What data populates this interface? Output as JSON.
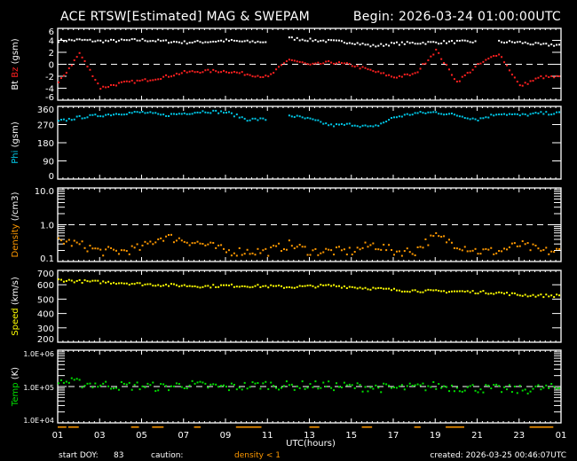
{
  "header": {
    "title": "ACE RTSW[Estimated] MAG & SWEPAM",
    "begin": "Begin: 2026-03-24 01:00:00UTC"
  },
  "footer": {
    "start_doy_label": "start DOY:",
    "start_doy": "83",
    "caution_label": "caution:",
    "caution_text": "density < 1",
    "created": "created: 2026-03-25 00:46:07UTC"
  },
  "colors": {
    "bt": "#ffffff",
    "bz": "#ff2020",
    "phi": "#00c8e8",
    "density": "#ff9900",
    "speed": "#ffff00",
    "temp": "#00e000"
  },
  "chart_data": {
    "type": "scatter",
    "xlabel": "UTC(hours)",
    "x_ticks": [
      "01",
      "03",
      "05",
      "07",
      "09",
      "11",
      "13",
      "15",
      "17",
      "19",
      "21",
      "23",
      "01"
    ],
    "x_hours": [
      0,
      1,
      2,
      3,
      4,
      5,
      6,
      7,
      8,
      9,
      10,
      11,
      12,
      13,
      14,
      15,
      16,
      17,
      18,
      19,
      20,
      21,
      22,
      23
    ],
    "panels": [
      {
        "id": "mag",
        "ylabel_parts": [
          "Bt",
          "Bz",
          "(gsm)"
        ],
        "scale": "linear",
        "ylim": [
          -6,
          6
        ],
        "ref_line": 0,
        "ticks": [
          "6",
          "4",
          "2",
          "0",
          "-2",
          "-4",
          "-6"
        ],
        "tick_values": [
          6,
          4,
          2,
          0,
          -2,
          -4,
          -6
        ],
        "series": [
          {
            "name": "Bt",
            "color_key": "bt",
            "values": [
              4.1,
              4.2,
              4.0,
              4.1,
              4.2,
              4.0,
              3.8,
              3.9,
              4.1,
              3.9,
              null,
              4.5,
              4.2,
              4.0,
              3.8,
              3.2,
              3.6,
              3.7,
              3.8,
              3.9,
              null,
              3.9,
              3.8,
              3.4
            ]
          },
          {
            "name": "Bz",
            "color_key": "bz",
            "values": [
              -3,
              2,
              -3.8,
              -3,
              -2.6,
              -2,
              -1.2,
              -1,
              -1,
              -1.5,
              -2,
              1,
              0,
              0.5,
              0,
              -1,
              -2,
              -1.5,
              2.5,
              -2.8,
              0,
              2,
              -3.5,
              -2
            ]
          }
        ]
      },
      {
        "id": "phi",
        "ylabel_parts": [
          "Phi",
          "(gsm)"
        ],
        "scale": "linear",
        "ylim": [
          0,
          360
        ],
        "ticks": [
          "360",
          "270",
          "180",
          "90",
          "0"
        ],
        "tick_values": [
          360,
          270,
          180,
          90,
          0
        ],
        "series": [
          {
            "name": "Phi",
            "color_key": "phi",
            "values": [
              290,
              310,
              320,
              330,
              335,
              320,
              330,
              340,
              335,
              300,
              null,
              320,
              300,
              270,
              275,
              260,
              310,
              330,
              335,
              320,
              300,
              330,
              320,
              330
            ]
          }
        ]
      },
      {
        "id": "density",
        "ylabel_parts": [
          "Density",
          "(/cm3)"
        ],
        "scale": "log",
        "ylim": [
          0.1,
          10
        ],
        "ref_line": 1,
        "ticks": [
          "10.0",
          "1.0",
          "0.1"
        ],
        "tick_values": [
          10,
          1,
          0.1
        ],
        "series": [
          {
            "name": "Density",
            "color_key": "density",
            "values": [
              0.4,
              0.3,
              0.2,
              0.2,
              0.25,
              0.5,
              0.4,
              0.3,
              0.2,
              0.2,
              0.2,
              0.3,
              0.2,
              0.2,
              0.2,
              0.3,
              0.2,
              0.2,
              0.5,
              0.3,
              0.2,
              0.2,
              0.3,
              0.2
            ]
          }
        ]
      },
      {
        "id": "speed",
        "ylabel_parts": [
          "Speed",
          "(km/s)"
        ],
        "scale": "linear",
        "ylim": [
          200,
          700
        ],
        "ticks": [
          "700",
          "600",
          "500",
          "400",
          "300",
          "200"
        ],
        "tick_values": [
          700,
          600,
          500,
          400,
          300,
          200
        ],
        "series": [
          {
            "name": "Speed",
            "color_key": "speed",
            "values": [
              640,
              630,
              625,
              620,
              610,
              605,
              600,
              595,
              600,
              598,
              595,
              590,
              595,
              600,
              590,
              580,
              570,
              565,
              560,
              560,
              555,
              550,
              535,
              530
            ]
          }
        ]
      },
      {
        "id": "temp",
        "ylabel_parts": [
          "Temp",
          "(K)"
        ],
        "scale": "log",
        "ylim": [
          10000,
          1000000
        ],
        "ref_line": 100000,
        "ticks": [
          "1.0E+06",
          "1.0E+05",
          "1.0E+04"
        ],
        "tick_values": [
          1000000,
          100000,
          10000
        ],
        "series": [
          {
            "name": "Temp",
            "color_key": "temp",
            "values": [
              150000,
              130000,
              120000,
              110000,
              110000,
              100000,
              120000,
              110000,
              100000,
              110000,
              120000,
              110000,
              115000,
              110000,
              105000,
              100000,
              95000,
              100000,
              110000,
              100000,
              95000,
              90000,
              85000,
              95000
            ]
          }
        ]
      }
    ]
  }
}
